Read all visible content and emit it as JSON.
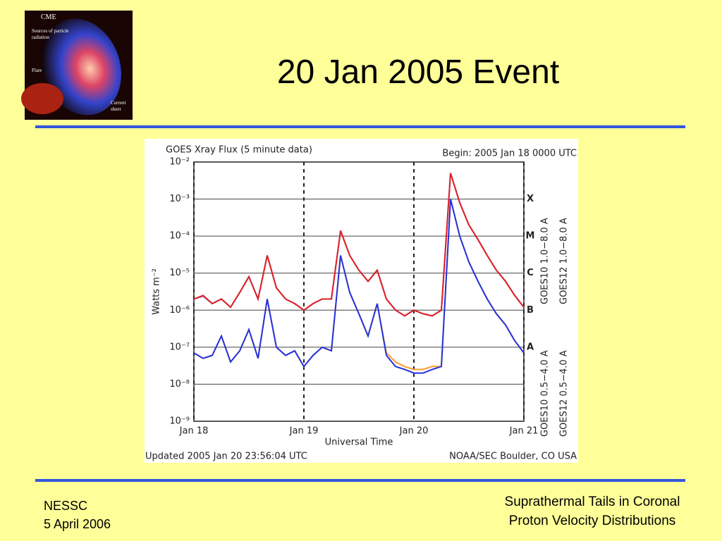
{
  "slide": {
    "title": "20 Jan 2005 Event"
  },
  "logo": {
    "cme": "CME",
    "sources": [
      "Sources of particle",
      "radiation"
    ],
    "flare": "Flare",
    "current": [
      "Current",
      "sheet"
    ]
  },
  "footer": {
    "left": [
      "NESSC",
      "5 April 2006"
    ],
    "right": [
      "Suprathermal Tails in Coronal",
      "Proton Velocity Distributions"
    ]
  },
  "chart_data": {
    "type": "line",
    "title": "GOES Xray Flux (5 minute data)",
    "subtitle": "Begin:  2005 Jan 18 0000 UTC",
    "y_label": "Watts m⁻²",
    "x_label": "Universal Time",
    "notes": [
      "Updated 2005 Jan 20 23:56:04 UTC",
      "NOAA/SEC Boulder, CO USA"
    ],
    "log_y": true,
    "grid": true,
    "xlim": [
      0,
      72
    ],
    "xticks": [
      {
        "value": 0,
        "label": "Jan 18"
      },
      {
        "value": 24,
        "label": "Jan 19"
      },
      {
        "value": 48,
        "label": "Jan 20"
      },
      {
        "value": 72,
        "label": "Jan 21"
      }
    ],
    "ylim": [
      1e-09,
      0.01
    ],
    "yticks": [
      {
        "value": 1e-09,
        "label": "10⁻⁹"
      },
      {
        "value": 1e-08,
        "label": "10⁻⁸"
      },
      {
        "value": 1e-07,
        "label": "10⁻⁷"
      },
      {
        "value": 1e-06,
        "label": "10⁻⁶"
      },
      {
        "value": 1e-05,
        "label": "10⁻⁵"
      },
      {
        "value": 0.0001,
        "label": "10⁻⁴"
      },
      {
        "value": 0.001,
        "label": "10⁻³"
      },
      {
        "value": 0.01,
        "label": "10⁻²"
      }
    ],
    "class_labels": [
      {
        "value": 1e-07,
        "label": "A"
      },
      {
        "value": 1e-06,
        "label": "B"
      },
      {
        "value": 1e-05,
        "label": "C"
      },
      {
        "value": 0.0001,
        "label": "M"
      },
      {
        "value": 0.001,
        "label": "X"
      }
    ],
    "x": [
      0,
      2,
      4,
      6,
      8,
      10,
      12,
      14,
      16,
      18,
      20,
      22,
      24,
      26,
      28,
      30,
      32,
      34,
      36,
      38,
      40,
      42,
      44,
      46,
      48,
      50,
      52,
      54,
      56,
      58,
      60,
      62,
      64,
      66,
      68,
      70,
      72
    ],
    "series": [
      {
        "name": "GOES10 1.0−8.0 A",
        "color": "#9955cc",
        "values": [
          2e-06,
          2.4e-06,
          1.5e-06,
          2e-06,
          1.2e-06,
          3e-06,
          8e-06,
          2e-06,
          3e-05,
          4e-06,
          2e-06,
          1.5e-06,
          1e-06,
          1.5e-06,
          2e-06,
          2e-06,
          0.00014,
          3e-05,
          1.2e-05,
          6e-06,
          1.2e-05,
          2e-06,
          1e-06,
          7e-07,
          1e-06,
          8e-07,
          7e-07,
          1e-06,
          0.005,
          0.0008,
          0.0002,
          8e-05,
          3e-05,
          1.2e-05,
          6e-06,
          2.5e-06,
          1.2e-06
        ]
      },
      {
        "name": "GOES12 1.0−8.0 A",
        "color": "#dd2222",
        "values": [
          2e-06,
          2.5e-06,
          1.5e-06,
          2e-06,
          1.2e-06,
          3e-06,
          8e-06,
          2e-06,
          3e-05,
          4e-06,
          2e-06,
          1.5e-06,
          1e-06,
          1.5e-06,
          2e-06,
          2e-06,
          0.00014,
          3e-05,
          1.2e-05,
          6e-06,
          1.2e-05,
          2e-06,
          1e-06,
          7e-07,
          1e-06,
          8e-07,
          7e-07,
          1e-06,
          0.005,
          0.0008,
          0.0002,
          8e-05,
          3e-05,
          1.2e-05,
          6e-06,
          2.5e-06,
          1.2e-06
        ]
      },
      {
        "name": "GOES10 0.5−4.0 A",
        "color": "#ff9933",
        "values": [
          7e-08,
          5e-08,
          6e-08,
          2e-07,
          4e-08,
          8e-08,
          3e-07,
          5e-08,
          2e-06,
          1e-07,
          6e-08,
          8e-08,
          3e-08,
          6e-08,
          1e-07,
          8e-08,
          3e-05,
          3e-06,
          8e-07,
          2e-07,
          1.5e-06,
          7e-08,
          4e-08,
          3e-08,
          2.5e-08,
          2.5e-08,
          3e-08,
          3e-08,
          0.001,
          0.0001,
          2e-05,
          6e-06,
          2e-06,
          8e-07,
          4e-07,
          1.5e-07,
          7e-08
        ]
      },
      {
        "name": "GOES12 0.5−4.0 A",
        "color": "#2233dd",
        "values": [
          7e-08,
          5e-08,
          6e-08,
          2e-07,
          4e-08,
          8e-08,
          3e-07,
          5e-08,
          2e-06,
          1e-07,
          6e-08,
          8e-08,
          3e-08,
          6e-08,
          1e-07,
          8e-08,
          3e-05,
          3e-06,
          8e-07,
          2e-07,
          1.5e-06,
          6e-08,
          3e-08,
          2.5e-08,
          2e-08,
          2e-08,
          2.5e-08,
          3e-08,
          0.001,
          0.0001,
          2e-05,
          6e-06,
          2e-06,
          8e-07,
          4e-07,
          1.5e-07,
          7e-08
        ]
      }
    ]
  }
}
